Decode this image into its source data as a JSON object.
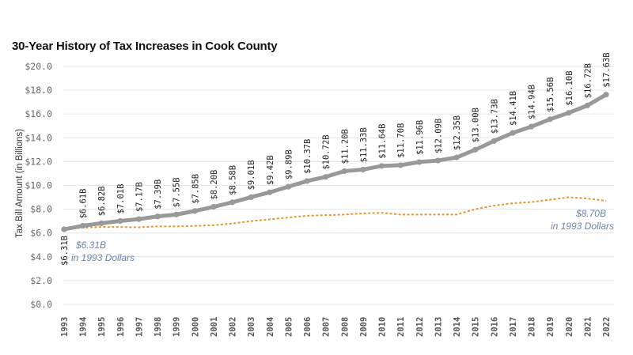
{
  "chart_data": {
    "type": "line",
    "title": "30-Year History of Tax Increases in Cook County",
    "ylabel": "Tax Bill Amount (in Billions)",
    "xlabel": "",
    "ylim": [
      0,
      20
    ],
    "yticks": [
      "$0.0",
      "$2.0",
      "$4.0",
      "$6.0",
      "$8.0",
      "$10.0",
      "$12.0",
      "$14.0",
      "$16.0",
      "$18.0",
      "$20.0"
    ],
    "ytick_values": [
      0,
      2,
      4,
      6,
      8,
      10,
      12,
      14,
      16,
      18,
      20
    ],
    "grid": true,
    "x": [
      "1993",
      "1994",
      "1995",
      "1996",
      "1997",
      "1998",
      "1999",
      "2000",
      "2001",
      "2002",
      "2003",
      "2004",
      "2005",
      "2006",
      "2007",
      "2008",
      "2009",
      "2010",
      "2011",
      "2012",
      "2013",
      "2014",
      "2015",
      "2016",
      "2017",
      "2018",
      "2019",
      "2020",
      "2021",
      "2022"
    ],
    "series": [
      {
        "name": "",
        "color": "#999999",
        "style": "solid",
        "values": [
          6.31,
          6.61,
          6.82,
          7.01,
          7.17,
          7.39,
          7.55,
          7.85,
          8.2,
          8.58,
          9.01,
          9.42,
          9.89,
          10.37,
          10.72,
          11.2,
          11.33,
          11.64,
          11.7,
          11.96,
          12.09,
          12.35,
          13.0,
          13.73,
          14.41,
          14.94,
          15.56,
          16.1,
          16.72,
          17.63
        ],
        "labels": [
          "$6.31B",
          "$6.61B",
          "$6.82B",
          "$7.01B",
          "$7.17B",
          "$7.39B",
          "$7.55B",
          "$7.85B",
          "$8.20B",
          "$8.58B",
          "$9.01B",
          "$9.42B",
          "$9.89B",
          "$10.37B",
          "$10.72B",
          "$11.20B",
          "$11.33B",
          "$11.64B",
          "$11.70B",
          "$11.96B",
          "$12.09B",
          "$12.35B",
          "$13.00B",
          "$13.73B",
          "$14.41B",
          "$14.94B",
          "$15.56B",
          "$16.10B",
          "$16.72B",
          "$17.63B"
        ]
      },
      {
        "name": "",
        "color": "#e8952e",
        "style": "dotted",
        "values": [
          6.31,
          6.45,
          6.5,
          6.5,
          6.48,
          6.55,
          6.55,
          6.6,
          6.65,
          6.8,
          7.0,
          7.15,
          7.3,
          7.45,
          7.5,
          7.55,
          7.65,
          7.7,
          7.55,
          7.55,
          7.55,
          7.55,
          8.0,
          8.3,
          8.5,
          8.6,
          8.8,
          9.0,
          8.9,
          8.7
        ]
      }
    ],
    "annotations": [
      {
        "lines": [
          "$6.31B",
          "in 1993 Dollars"
        ]
      },
      {
        "lines": [
          "$8.70B",
          "in 1993 Dollars"
        ]
      }
    ]
  }
}
